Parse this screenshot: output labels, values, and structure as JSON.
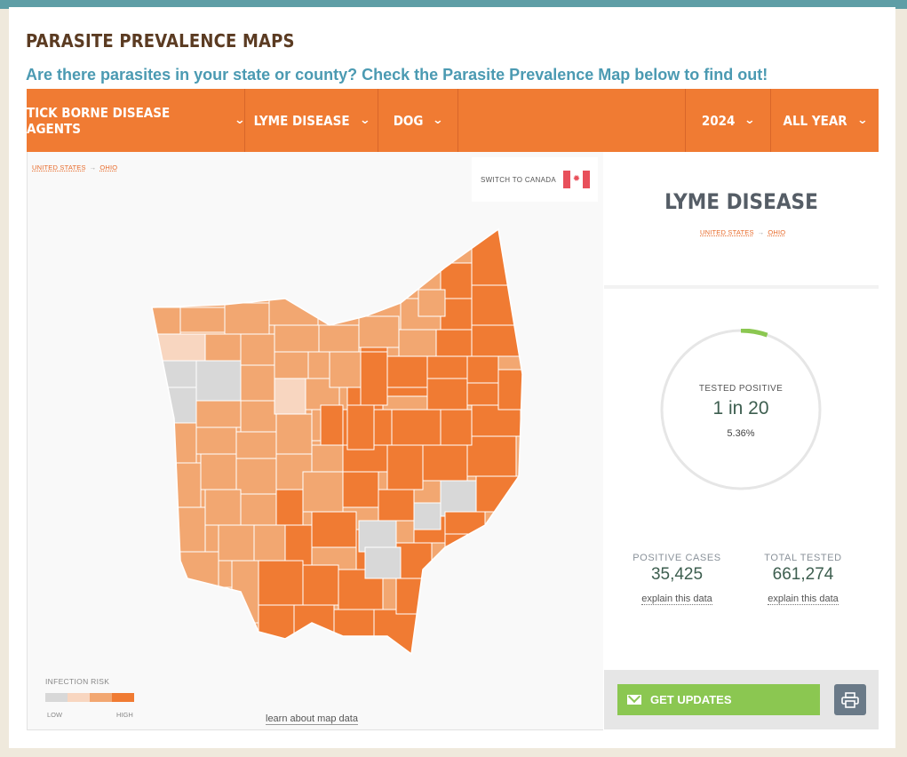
{
  "header": {
    "title": "PARASITE PREVALENCE MAPS",
    "subtitle": "Are there parasites in your state or county? Check the Parasite Prevalence Map below to find out!"
  },
  "filters": {
    "agent": "TICK BORNE DISEASE AGENTS",
    "disease": "LYME DISEASE",
    "species": "DOG",
    "year": "2024",
    "period": "ALL YEAR"
  },
  "breadcrumb": {
    "country": "UNITED STATES",
    "arrow": "→",
    "state": "OHIO"
  },
  "switch_country": {
    "label": "SWITCH TO CANADA",
    "flag": "canada-flag-icon"
  },
  "legend": {
    "title": "INFECTION RISK",
    "low": "LOW",
    "high": "HIGH",
    "colors": [
      "#d8d8d8",
      "#f8d6c0",
      "#f2a771",
      "#f07b33"
    ]
  },
  "learn_link": "learn about map data",
  "side": {
    "title": "LYME DISEASE",
    "tested_positive_label": "TESTED POSITIVE",
    "tested_positive_ratio": "1 in 20",
    "tested_positive_pct": "5.36%",
    "positive_cases_label": "POSITIVE CASES",
    "positive_cases": "35,425",
    "total_tested_label": "TOTAL TESTED",
    "total_tested": "661,274",
    "explain": "explain this data",
    "get_updates": "GET UPDATES",
    "print_icon": "printer-icon"
  },
  "colors": {
    "accent": "#f07b33",
    "high": "#f07b33",
    "medium": "#f2a771",
    "low": "#f8d6c0",
    "none": "#d8d8d8",
    "title": "#5b3b22",
    "link": "#4b9ab2",
    "button": "#8bc751"
  }
}
